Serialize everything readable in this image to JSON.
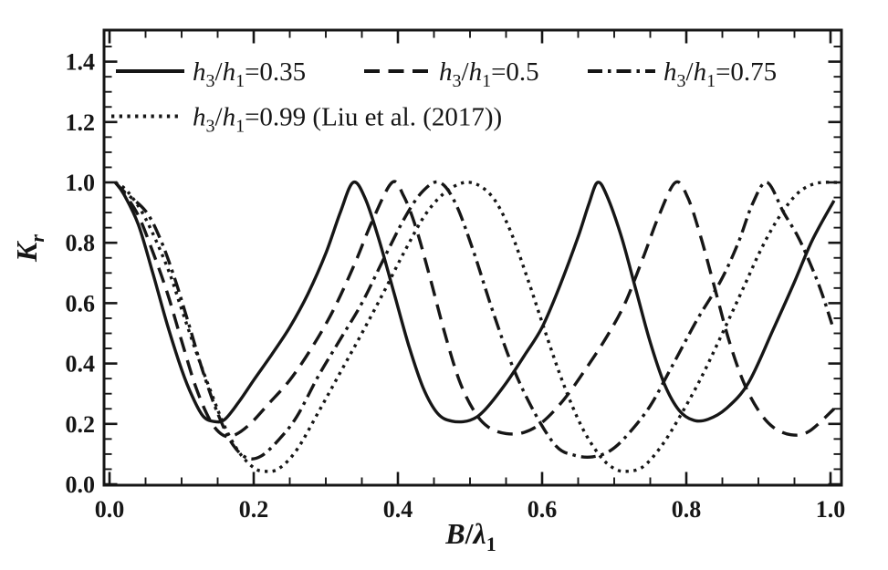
{
  "figure": {
    "background": "#ffffff",
    "ink": "#161616",
    "description": "Reflection coefficient Kr versus relative breakwater width B/lambda1 for four submergence ratios"
  },
  "chart_data": {
    "type": "line",
    "title": "",
    "xlabel": "B/λ_1",
    "ylabel": "K_r",
    "xlim": [
      0,
      1.0
    ],
    "ylim": [
      0,
      1.5
    ],
    "grid": false,
    "frame": "box with inward ticks on all four sides",
    "minor_tick_step": 0.05,
    "legend_position": "inside top-left, two rows",
    "x_major_ticks": [
      {
        "v": 0.0,
        "label": "0.0"
      },
      {
        "v": 0.2,
        "label": "0.2"
      },
      {
        "v": 0.4,
        "label": "0.4"
      },
      {
        "v": 0.6,
        "label": "0.6"
      },
      {
        "v": 0.8,
        "label": "0.8"
      },
      {
        "v": 1.0,
        "label": "1.0"
      }
    ],
    "y_major_ticks": [
      {
        "v": 0.0,
        "label": "0.0"
      },
      {
        "v": 0.2,
        "label": "0.2"
      },
      {
        "v": 0.4,
        "label": "0.4"
      },
      {
        "v": 0.6,
        "label": "0.6"
      },
      {
        "v": 0.8,
        "label": "0.8"
      },
      {
        "v": 1.0,
        "label": "1.0"
      },
      {
        "v": 1.2,
        "label": "1.2"
      },
      {
        "v": 1.4,
        "label": "1.4"
      }
    ],
    "series": [
      {
        "label": "h_3/h_1=0.35",
        "suffix": "",
        "line_style": "solid",
        "color": "#161616",
        "points": [
          [
            0.008,
            1.0
          ],
          [
            0.02,
            0.96
          ],
          [
            0.04,
            0.86
          ],
          [
            0.06,
            0.7
          ],
          [
            0.08,
            0.53
          ],
          [
            0.1,
            0.38
          ],
          [
            0.115,
            0.29
          ],
          [
            0.13,
            0.225
          ],
          [
            0.145,
            0.208
          ],
          [
            0.16,
            0.215
          ],
          [
            0.18,
            0.275
          ],
          [
            0.2,
            0.345
          ],
          [
            0.225,
            0.43
          ],
          [
            0.25,
            0.52
          ],
          [
            0.275,
            0.63
          ],
          [
            0.3,
            0.765
          ],
          [
            0.32,
            0.9
          ],
          [
            0.338,
            1.0
          ],
          [
            0.355,
            0.945
          ],
          [
            0.375,
            0.8
          ],
          [
            0.395,
            0.63
          ],
          [
            0.415,
            0.46
          ],
          [
            0.435,
            0.32
          ],
          [
            0.455,
            0.235
          ],
          [
            0.475,
            0.209
          ],
          [
            0.5,
            0.212
          ],
          [
            0.52,
            0.245
          ],
          [
            0.55,
            0.335
          ],
          [
            0.575,
            0.425
          ],
          [
            0.6,
            0.52
          ],
          [
            0.625,
            0.66
          ],
          [
            0.65,
            0.82
          ],
          [
            0.665,
            0.93
          ],
          [
            0.677,
            1.0
          ],
          [
            0.69,
            0.955
          ],
          [
            0.71,
            0.82
          ],
          [
            0.73,
            0.645
          ],
          [
            0.75,
            0.47
          ],
          [
            0.77,
            0.33
          ],
          [
            0.79,
            0.245
          ],
          [
            0.81,
            0.212
          ],
          [
            0.83,
            0.215
          ],
          [
            0.855,
            0.25
          ],
          [
            0.886,
            0.335
          ],
          [
            0.92,
            0.51
          ],
          [
            0.95,
            0.67
          ],
          [
            0.975,
            0.81
          ],
          [
            1.005,
            0.94
          ]
        ]
      },
      {
        "label": "h_3/h_1=0.5",
        "suffix": "",
        "line_style": "dashed",
        "color": "#161616",
        "points": [
          [
            0.008,
            1.0
          ],
          [
            0.02,
            0.965
          ],
          [
            0.04,
            0.89
          ],
          [
            0.06,
            0.77
          ],
          [
            0.08,
            0.635
          ],
          [
            0.1,
            0.475
          ],
          [
            0.12,
            0.32
          ],
          [
            0.14,
            0.21
          ],
          [
            0.158,
            0.162
          ],
          [
            0.175,
            0.165
          ],
          [
            0.195,
            0.2
          ],
          [
            0.22,
            0.265
          ],
          [
            0.25,
            0.345
          ],
          [
            0.28,
            0.45
          ],
          [
            0.31,
            0.575
          ],
          [
            0.34,
            0.73
          ],
          [
            0.365,
            0.875
          ],
          [
            0.392,
            1.0
          ],
          [
            0.408,
            0.955
          ],
          [
            0.425,
            0.85
          ],
          [
            0.445,
            0.68
          ],
          [
            0.465,
            0.5
          ],
          [
            0.485,
            0.345
          ],
          [
            0.505,
            0.245
          ],
          [
            0.525,
            0.19
          ],
          [
            0.55,
            0.168
          ],
          [
            0.575,
            0.172
          ],
          [
            0.6,
            0.205
          ],
          [
            0.63,
            0.28
          ],
          [
            0.66,
            0.38
          ],
          [
            0.69,
            0.49
          ],
          [
            0.715,
            0.6
          ],
          [
            0.74,
            0.75
          ],
          [
            0.762,
            0.89
          ],
          [
            0.785,
            1.0
          ],
          [
            0.802,
            0.95
          ],
          [
            0.82,
            0.82
          ],
          [
            0.84,
            0.645
          ],
          [
            0.86,
            0.47
          ],
          [
            0.88,
            0.335
          ],
          [
            0.9,
            0.245
          ],
          [
            0.92,
            0.19
          ],
          [
            0.945,
            0.164
          ],
          [
            0.97,
            0.175
          ],
          [
            1.005,
            0.25
          ]
        ]
      },
      {
        "label": "h_3/h_1=0.75",
        "suffix": "",
        "line_style": "dashdot",
        "color": "#161616",
        "points": [
          [
            0.008,
            1.0
          ],
          [
            0.02,
            0.97
          ],
          [
            0.05,
            0.905
          ],
          [
            0.07,
            0.815
          ],
          [
            0.09,
            0.685
          ],
          [
            0.11,
            0.53
          ],
          [
            0.13,
            0.37
          ],
          [
            0.15,
            0.235
          ],
          [
            0.17,
            0.135
          ],
          [
            0.19,
            0.088
          ],
          [
            0.21,
            0.093
          ],
          [
            0.235,
            0.148
          ],
          [
            0.26,
            0.225
          ],
          [
            0.29,
            0.36
          ],
          [
            0.32,
            0.48
          ],
          [
            0.35,
            0.6
          ],
          [
            0.38,
            0.745
          ],
          [
            0.41,
            0.885
          ],
          [
            0.435,
            0.972
          ],
          [
            0.458,
            1.0
          ],
          [
            0.48,
            0.93
          ],
          [
            0.505,
            0.77
          ],
          [
            0.532,
            0.57
          ],
          [
            0.56,
            0.385
          ],
          [
            0.59,
            0.235
          ],
          [
            0.62,
            0.125
          ],
          [
            0.645,
            0.096
          ],
          [
            0.67,
            0.091
          ],
          [
            0.695,
            0.112
          ],
          [
            0.72,
            0.168
          ],
          [
            0.75,
            0.26
          ],
          [
            0.78,
            0.39
          ],
          [
            0.815,
            0.545
          ],
          [
            0.848,
            0.675
          ],
          [
            0.872,
            0.8
          ],
          [
            0.892,
            0.93
          ],
          [
            0.912,
            1.0
          ],
          [
            0.935,
            0.9
          ],
          [
            0.955,
            0.82
          ],
          [
            0.972,
            0.73
          ],
          [
            0.987,
            0.64
          ],
          [
            1.002,
            0.53
          ]
        ]
      },
      {
        "label": "h_3/h_1=0.99",
        "suffix": " (Liu et al. (2017))",
        "line_style": "dotted",
        "color": "#161616",
        "points": [
          [
            0.008,
            1.0
          ],
          [
            0.025,
            0.97
          ],
          [
            0.05,
            0.88
          ],
          [
            0.08,
            0.72
          ],
          [
            0.1,
            0.58
          ],
          [
            0.12,
            0.44
          ],
          [
            0.14,
            0.31
          ],
          [
            0.16,
            0.19
          ],
          [
            0.18,
            0.105
          ],
          [
            0.2,
            0.055
          ],
          [
            0.215,
            0.043
          ],
          [
            0.235,
            0.052
          ],
          [
            0.26,
            0.115
          ],
          [
            0.29,
            0.24
          ],
          [
            0.32,
            0.37
          ],
          [
            0.35,
            0.5
          ],
          [
            0.38,
            0.635
          ],
          [
            0.41,
            0.775
          ],
          [
            0.44,
            0.9
          ],
          [
            0.47,
            0.975
          ],
          [
            0.5,
            1.0
          ],
          [
            0.53,
            0.955
          ],
          [
            0.555,
            0.845
          ],
          [
            0.58,
            0.68
          ],
          [
            0.605,
            0.5
          ],
          [
            0.63,
            0.33
          ],
          [
            0.655,
            0.19
          ],
          [
            0.68,
            0.095
          ],
          [
            0.7,
            0.052
          ],
          [
            0.718,
            0.043
          ],
          [
            0.74,
            0.058
          ],
          [
            0.765,
            0.125
          ],
          [
            0.79,
            0.22
          ],
          [
            0.82,
            0.35
          ],
          [
            0.85,
            0.5
          ],
          [
            0.88,
            0.655
          ],
          [
            0.905,
            0.785
          ],
          [
            0.93,
            0.89
          ],
          [
            0.955,
            0.965
          ],
          [
            0.98,
            0.997
          ],
          [
            1.01,
            1.0
          ]
        ]
      }
    ]
  }
}
